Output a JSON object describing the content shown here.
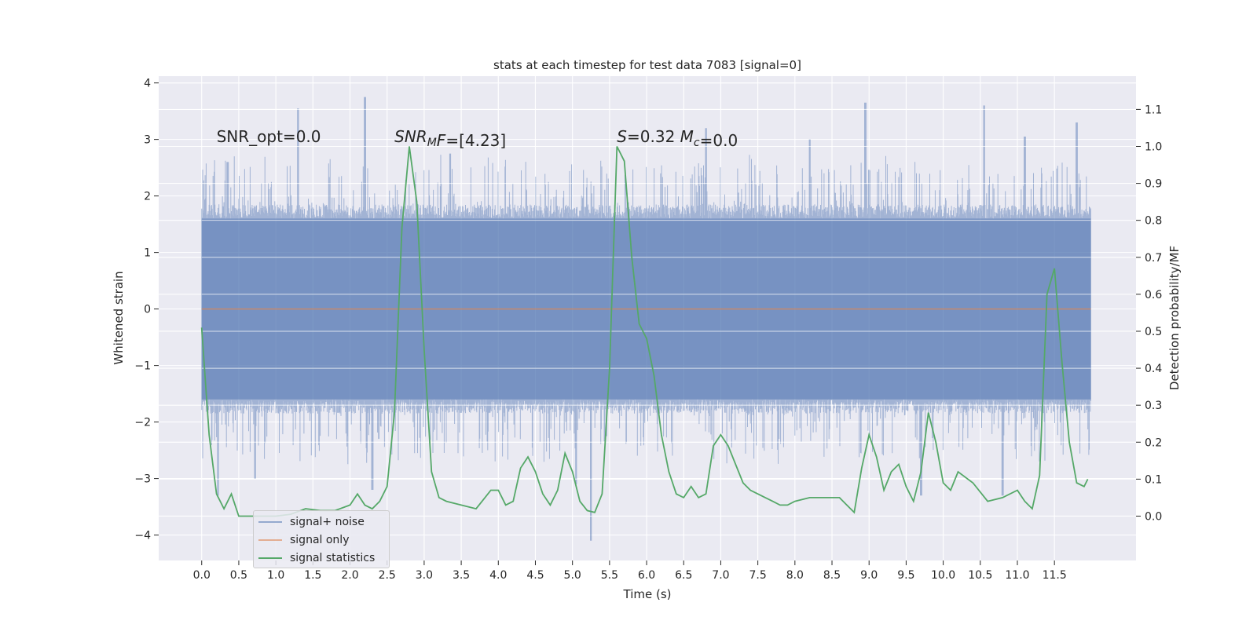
{
  "chart_data": {
    "type": "line",
    "title": "stats at each timestep for test data 7083 [signal=0]",
    "xlabel": "Time (s)",
    "ylabel_left": "Whitened strain",
    "ylabel_right": "Detection probability/MF",
    "xlim": [
      -0.58,
      12.6
    ],
    "ylim_left": [
      -4.45,
      4.12
    ],
    "ylim_right": [
      -0.12,
      1.19
    ],
    "x_ticks": [
      0.0,
      0.5,
      1.0,
      1.5,
      2.0,
      2.5,
      3.0,
      3.5,
      4.0,
      4.5,
      5.0,
      5.5,
      6.0,
      6.5,
      7.0,
      7.5,
      8.0,
      8.5,
      9.0,
      9.5,
      10.0,
      10.5,
      11.0,
      11.5
    ],
    "x_tick_labels": [
      "0.0",
      "0.5",
      "1.0",
      "1.5",
      "2.0",
      "2.5",
      "3.0",
      "3.5",
      "4.0",
      "4.5",
      "5.0",
      "5.5",
      "6.0",
      "6.5",
      "7.0",
      "7.5",
      "8.0",
      "8.5",
      "9.0",
      "9.5",
      "10.0",
      "10.5",
      "11.0",
      "11.5"
    ],
    "y_left_ticks": [
      -4,
      -3,
      -2,
      -1,
      0,
      1,
      2,
      3,
      4
    ],
    "y_left_tick_labels": [
      "−4",
      "−3",
      "−2",
      "−1",
      "0",
      "1",
      "2",
      "3",
      "4"
    ],
    "y_right_ticks": [
      0.0,
      0.1,
      0.2,
      0.3,
      0.4,
      0.5,
      0.6,
      0.7,
      0.8,
      0.9,
      1.0,
      1.1
    ],
    "y_right_tick_labels": [
      "0.0",
      "0.1",
      "0.2",
      "0.3",
      "0.4",
      "0.5",
      "0.6",
      "0.7",
      "0.8",
      "0.9",
      "1.0",
      "1.1"
    ],
    "grid": true,
    "legend_position": "lower-left",
    "noise_envelope": {
      "x_range": [
        0.0,
        11.99
      ],
      "y_range": [
        -4.1,
        3.75
      ],
      "typical_abs": 1.6,
      "peak_up": [
        [
          0.35,
          2.6
        ],
        [
          1.3,
          3.55
        ],
        [
          2.2,
          3.75
        ],
        [
          3.35,
          2.75
        ],
        [
          6.8,
          3.2
        ],
        [
          8.2,
          3.0
        ],
        [
          8.95,
          3.65
        ],
        [
          10.55,
          3.6
        ],
        [
          11.1,
          3.05
        ],
        [
          11.8,
          3.3
        ]
      ],
      "peak_down": [
        [
          0.22,
          -3.3
        ],
        [
          0.72,
          -3.0
        ],
        [
          2.3,
          -3.2
        ],
        [
          5.05,
          -3.1
        ],
        [
          5.25,
          -4.1
        ],
        [
          9.7,
          -3.3
        ],
        [
          10.8,
          -3.3
        ]
      ]
    },
    "series": [
      {
        "name": "signal+ noise",
        "color": "#4c72b0",
        "axis": "left",
        "style": "dense-noise",
        "alpha": 0.5
      },
      {
        "name": "signal only",
        "color": "#dd8452",
        "axis": "left",
        "x": [
          0.0,
          11.99
        ],
        "y": [
          0.0,
          0.0
        ],
        "alpha": 0.6
      },
      {
        "name": "signal statistics",
        "color": "#55a868",
        "axis": "right",
        "x": [
          0.0,
          0.1,
          0.2,
          0.3,
          0.4,
          0.5,
          0.6,
          0.8,
          1.0,
          1.2,
          1.4,
          1.6,
          1.8,
          2.0,
          2.1,
          2.2,
          2.3,
          2.4,
          2.5,
          2.6,
          2.7,
          2.8,
          2.9,
          3.0,
          3.1,
          3.2,
          3.3,
          3.5,
          3.7,
          3.9,
          4.0,
          4.1,
          4.2,
          4.3,
          4.4,
          4.5,
          4.6,
          4.7,
          4.8,
          4.9,
          5.0,
          5.1,
          5.2,
          5.3,
          5.4,
          5.5,
          5.6,
          5.7,
          5.8,
          5.9,
          6.0,
          6.1,
          6.2,
          6.3,
          6.4,
          6.5,
          6.6,
          6.7,
          6.8,
          6.9,
          7.0,
          7.1,
          7.2,
          7.3,
          7.4,
          7.5,
          7.6,
          7.7,
          7.8,
          7.9,
          8.0,
          8.2,
          8.4,
          8.6,
          8.7,
          8.8,
          8.9,
          9.0,
          9.1,
          9.2,
          9.3,
          9.4,
          9.5,
          9.6,
          9.7,
          9.8,
          9.9,
          10.0,
          10.1,
          10.2,
          10.4,
          10.6,
          10.8,
          11.0,
          11.1,
          11.2,
          11.3,
          11.4,
          11.5,
          11.6,
          11.7,
          11.8,
          11.9,
          11.95
        ],
        "y": [
          0.51,
          0.22,
          0.06,
          0.02,
          0.06,
          0.0,
          0.0,
          0.0,
          0.0,
          0.005,
          0.02,
          0.015,
          0.015,
          0.03,
          0.06,
          0.03,
          0.02,
          0.04,
          0.08,
          0.28,
          0.78,
          1.0,
          0.85,
          0.45,
          0.12,
          0.05,
          0.04,
          0.03,
          0.02,
          0.07,
          0.07,
          0.03,
          0.04,
          0.13,
          0.16,
          0.12,
          0.06,
          0.03,
          0.07,
          0.17,
          0.12,
          0.04,
          0.015,
          0.01,
          0.06,
          0.4,
          1.0,
          0.96,
          0.7,
          0.52,
          0.48,
          0.38,
          0.22,
          0.12,
          0.06,
          0.05,
          0.08,
          0.05,
          0.06,
          0.19,
          0.22,
          0.19,
          0.14,
          0.09,
          0.07,
          0.06,
          0.05,
          0.04,
          0.03,
          0.03,
          0.04,
          0.05,
          0.05,
          0.05,
          0.03,
          0.01,
          0.13,
          0.22,
          0.16,
          0.07,
          0.12,
          0.14,
          0.08,
          0.04,
          0.12,
          0.28,
          0.2,
          0.09,
          0.07,
          0.12,
          0.09,
          0.04,
          0.05,
          0.07,
          0.04,
          0.02,
          0.11,
          0.6,
          0.67,
          0.42,
          0.2,
          0.09,
          0.08,
          0.1
        ]
      }
    ],
    "annotations": [
      {
        "x": 0.2,
        "y": 2.95,
        "parts": [
          {
            "t": "SNR_opt=0.0"
          }
        ]
      },
      {
        "x": 2.6,
        "y": 2.95,
        "parts": [
          {
            "t": "SNR",
            "it": true
          },
          {
            "t": "M",
            "it": true,
            "sub": true
          },
          {
            "t": "F",
            "it": true
          },
          {
            "t": "=[4.23]"
          }
        ]
      },
      {
        "x": 5.6,
        "y": 2.95,
        "parts": [
          {
            "t": "S",
            "it": true
          },
          {
            "t": "=0.32   "
          },
          {
            "t": "M",
            "it": true
          },
          {
            "t": "c",
            "it": true,
            "sub": true
          },
          {
            "t": "=0.0"
          }
        ]
      }
    ]
  }
}
